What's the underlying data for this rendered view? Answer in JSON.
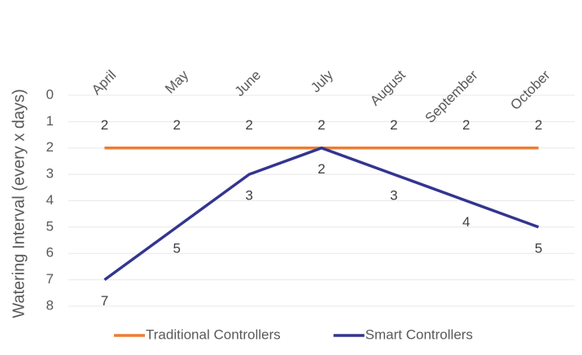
{
  "chart_data": {
    "type": "line",
    "y_label": "Watering Interval (every x days)",
    "categories": [
      "April",
      "May",
      "June",
      "July",
      "August",
      "September",
      "October"
    ],
    "series": [
      {
        "name": "Traditional Controllers",
        "color": "#ed7d31",
        "values": [
          2,
          2,
          2,
          2,
          2,
          2,
          2
        ],
        "label_position": "above"
      },
      {
        "name": "Smart Controllers",
        "color": "#33358f",
        "values": [
          7,
          5,
          3,
          2,
          3,
          4,
          5
        ],
        "label_position": "below"
      }
    ],
    "ylim": [
      0,
      8
    ],
    "yticks": [
      0,
      1,
      2,
      3,
      4,
      5,
      6,
      7,
      8
    ],
    "y_inverted": true,
    "grid": true,
    "legend": "bottom"
  }
}
